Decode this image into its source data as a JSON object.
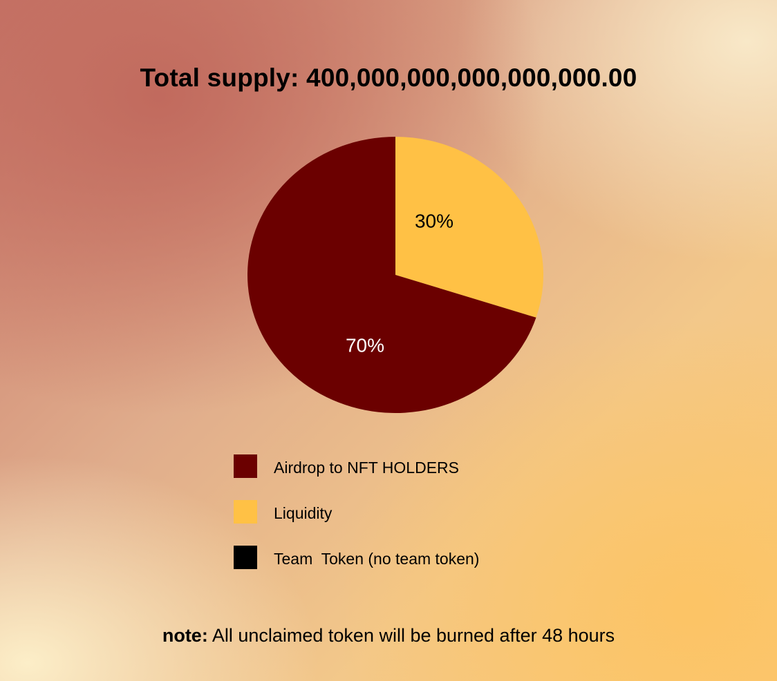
{
  "title": "Total supply: 400,000,000,000,000,000.00",
  "chart_data": {
    "type": "pie",
    "slices": [
      {
        "label": "Airdrop to NFT HOLDERS",
        "value": 70,
        "value_label": "70%",
        "color": "#6b0000"
      },
      {
        "label": "Liquidity",
        "value": 30,
        "value_label": "30%",
        "color": "#ffc145"
      }
    ]
  },
  "legend": [
    {
      "label": "Airdrop to NFT HOLDERS",
      "note": "",
      "color": "#6b0000"
    },
    {
      "label": "Liquidity",
      "note": "",
      "color": "#ffc145"
    },
    {
      "label": "Team  Token",
      "note": "(no team token)",
      "color": "#000000"
    }
  ],
  "note": {
    "label": "note:",
    "text": "All unclaimed token will be burned after 48 hours"
  }
}
